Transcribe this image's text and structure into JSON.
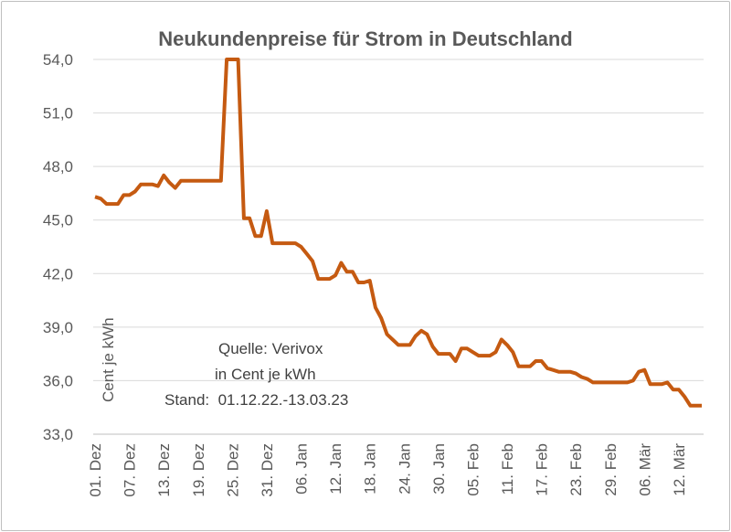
{
  "chart_data": {
    "type": "line",
    "title": "Neukundenpreise für Strom in Deutschland",
    "ylabel": "Cent je kWh",
    "ylim": [
      33.0,
      54.0
    ],
    "y_ticks": [
      "33,0",
      "36,0",
      "39,0",
      "42,0",
      "45,0",
      "48,0",
      "51,0",
      "54,0"
    ],
    "x_ticks": [
      "01. Dez",
      "07. Dez",
      "13. Dez",
      "19. Dez",
      "25. Dez",
      "31. Dez",
      "06. Jan",
      "12. Jan",
      "18. Jan",
      "24. Jan",
      "30. Jan",
      "05. Feb",
      "11. Feb",
      "17. Feb",
      "23. Feb",
      "29. Feb",
      "06. Mär",
      "12. Mär"
    ],
    "annotation": [
      "Quelle: Verivox",
      "in Cent je kWh",
      "Stand:  01.12.22.-13.03.23"
    ],
    "grid": true,
    "line_color": "#c55a11",
    "series": [
      {
        "values": [
          46.3,
          46.2,
          45.9,
          45.9,
          45.9,
          46.4,
          46.4,
          46.6,
          47.0,
          47.0,
          47.0,
          46.9,
          47.5,
          47.1,
          46.8,
          47.2,
          47.2,
          47.2,
          47.2,
          47.2,
          47.2,
          47.2,
          47.2,
          54.0,
          54.0,
          54.0,
          45.1,
          45.1,
          44.1,
          44.1,
          45.5,
          43.7,
          43.7,
          43.7,
          43.7,
          43.7,
          43.5,
          43.1,
          42.7,
          41.7,
          41.7,
          41.7,
          41.9,
          42.6,
          42.1,
          42.1,
          41.5,
          41.5,
          41.6,
          40.1,
          39.5,
          38.6,
          38.3,
          38.0,
          38.0,
          38.0,
          38.5,
          38.8,
          38.6,
          37.9,
          37.5,
          37.5,
          37.5,
          37.1,
          37.8,
          37.8,
          37.6,
          37.4,
          37.4,
          37.4,
          37.6,
          38.3,
          38.0,
          37.6,
          36.8,
          36.8,
          36.8,
          37.1,
          37.1,
          36.7,
          36.6,
          36.5,
          36.5,
          36.5,
          36.4,
          36.2,
          36.1,
          35.9,
          35.9,
          35.9,
          35.9,
          35.9,
          35.9,
          35.9,
          36.0,
          36.5,
          36.6,
          35.8,
          35.8,
          35.8,
          35.9,
          35.5,
          35.5,
          35.1,
          34.6,
          34.6,
          34.6
        ]
      }
    ]
  }
}
